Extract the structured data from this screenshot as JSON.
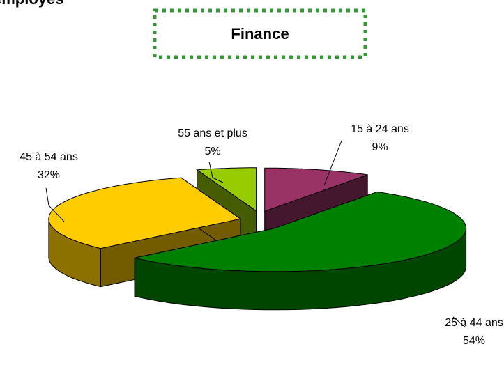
{
  "chart_data": {
    "type": "pie3d",
    "title": "employés",
    "subtitle": "Finance",
    "categories": [
      "15 à 24 ans",
      "25 à 44 ans",
      "45 à 54 ans",
      "55 ans et plus"
    ],
    "values": [
      9,
      54,
      32,
      5
    ],
    "value_labels": [
      "9%",
      "54%",
      "32%",
      "5%"
    ],
    "colors": [
      "#993366",
      "#008000",
      "#ffcc00",
      "#99cc00"
    ]
  }
}
